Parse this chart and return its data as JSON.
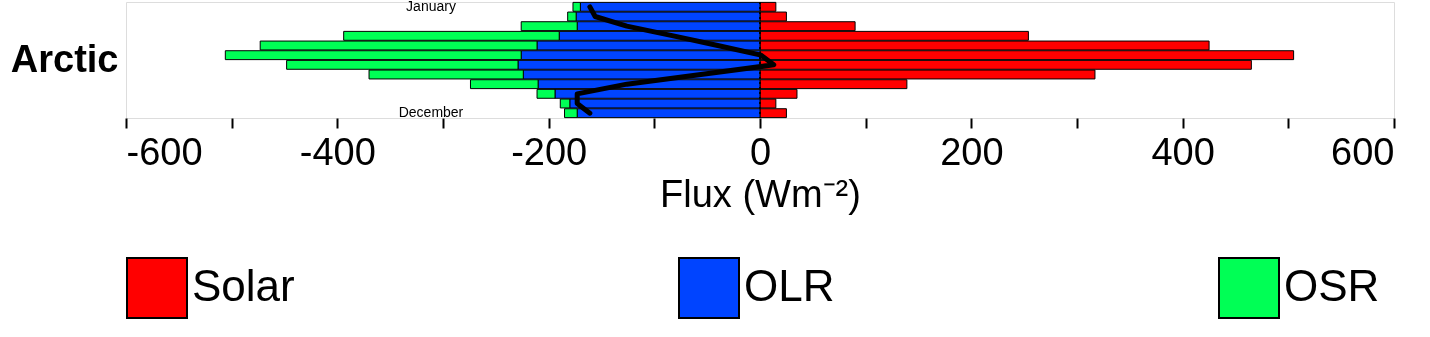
{
  "chart_data": {
    "type": "bar",
    "orientation": "horizontal",
    "stacked": true,
    "ylabel": "Arctic",
    "xlabel": "Flux (Wm⁻²)",
    "categories": [
      "January",
      null,
      null,
      null,
      null,
      null,
      null,
      null,
      null,
      null,
      null,
      "December"
    ],
    "series": [
      {
        "name": "Solar",
        "color": "#ff0000",
        "values": [
          15,
          25,
          90,
          254,
          425,
          505,
          465,
          317,
          139,
          35,
          15,
          25
        ]
      },
      {
        "name": "OLR",
        "color": "#0044ff",
        "values": [
          -170,
          -174,
          -173,
          -190,
          -211,
          -226,
          -229,
          -224,
          -210,
          -194,
          -180,
          -173
        ]
      },
      {
        "name": "OSR",
        "color": "#00ff55",
        "values": [
          -7,
          -8,
          -53,
          -204,
          -262,
          -280,
          -219,
          -146,
          -64,
          -17,
          -9,
          -12
        ]
      },
      {
        "type": "line",
        "color": "#000000",
        "values": [
          -161,
          -156,
          -126,
          -82,
          -40,
          1,
          13,
          -56,
          -126,
          -173,
          -173,
          -161
        ]
      }
    ],
    "xlim": [
      -600,
      600
    ],
    "xticks": [
      -600,
      {
        "value": -500,
        "label": null
      },
      -400,
      {
        "value": -300,
        "label": null
      },
      -200,
      {
        "value": -100,
        "label": null
      },
      0,
      {
        "value": 100,
        "label": null
      },
      200,
      {
        "value": 300,
        "label": null
      },
      400,
      {
        "value": 500,
        "label": null
      },
      600
    ],
    "tick_labels": "x",
    "ref_lines": [
      {
        "axis": "x",
        "value": 0,
        "color": "#000000",
        "line_style": "dotted"
      }
    ],
    "legend": "bottom",
    "grid": false
  }
}
